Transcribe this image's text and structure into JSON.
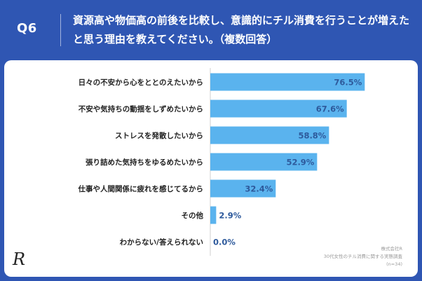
{
  "header": {
    "question_label": "Q6",
    "question_text": "資源高や物価高の前後を比較し、意識的にチル消費を行うことが増えたと思う理由を教えてください。（複数回答）"
  },
  "colors": {
    "accent": "#2f56b3",
    "bar": "#5ab3ee",
    "value_text": "#2e5a9c"
  },
  "chart_data": {
    "type": "bar",
    "orientation": "horizontal",
    "title": "",
    "xlabel": "",
    "ylabel": "",
    "xlim": [
      0,
      100
    ],
    "grid": false,
    "categories": [
      "日々の不安から心をととのえたいから",
      "不安や気持ちの動揺をしずめたいから",
      "ストレスを発散したいから",
      "張り詰めた気持ちをゆるめたいから",
      "仕事や人間関係に疲れを感じてるから",
      "その他",
      "わからない/答えられない"
    ],
    "values": [
      76.5,
      67.6,
      58.8,
      52.9,
      32.4,
      2.9,
      0.0
    ],
    "data_labels": [
      "76.5%",
      "67.6%",
      "58.8%",
      "52.9%",
      "32.4%",
      "2.9%",
      "0.0%"
    ]
  },
  "footer": {
    "line1": "株式会社R",
    "line2": "30代女性のチル消費に関する実態調査",
    "line3": "(n=34)"
  },
  "logo_text": "R"
}
